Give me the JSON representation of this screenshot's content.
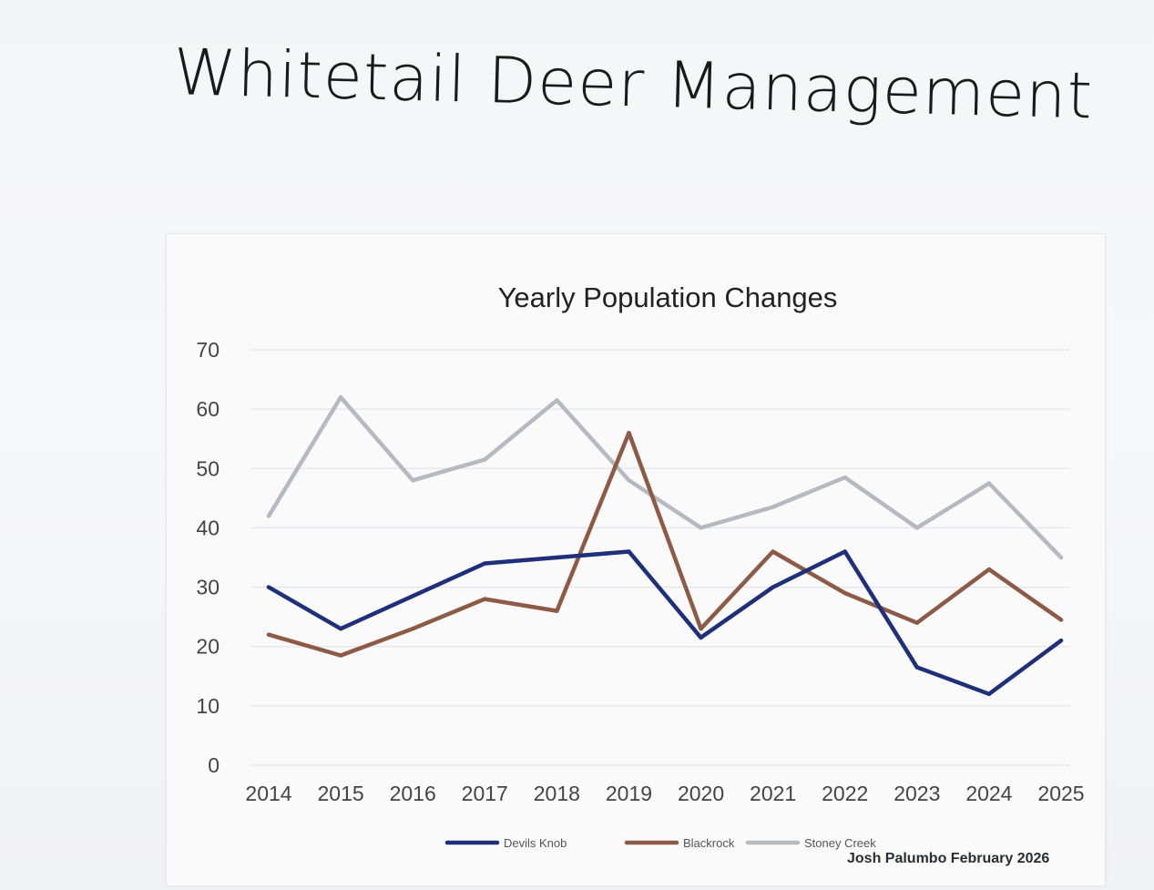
{
  "page": {
    "title": "Whitetail Deer Management",
    "footer": "Josh Palumbo February 2026"
  },
  "chart_data": {
    "type": "line",
    "title": "Yearly Population Changes",
    "xlabel": "",
    "ylabel": "",
    "ylim": [
      0,
      70
    ],
    "yticks": [
      0,
      10,
      20,
      30,
      40,
      50,
      60,
      70
    ],
    "grid": true,
    "legend_position": "bottom",
    "categories": [
      "2014",
      "2015",
      "2016",
      "2017",
      "2018",
      "2019",
      "2020",
      "2021",
      "2022",
      "2023",
      "2024",
      "2025"
    ],
    "series": [
      {
        "name": "Devils Knob",
        "color": "#1f2f7a",
        "values": [
          30,
          23,
          28.5,
          34,
          35,
          36,
          21.5,
          30,
          36,
          16.5,
          12,
          21
        ]
      },
      {
        "name": "Blackrock",
        "color": "#8c5a45",
        "values": [
          22,
          18.5,
          23,
          28,
          26,
          56,
          23,
          36,
          29,
          24,
          33,
          24.5
        ]
      },
      {
        "name": "Stoney Creek",
        "color": "#b4b9c2",
        "values": [
          42,
          62,
          48,
          51.5,
          61.5,
          48,
          40,
          43.5,
          48.5,
          40,
          47.5,
          35
        ]
      }
    ]
  }
}
